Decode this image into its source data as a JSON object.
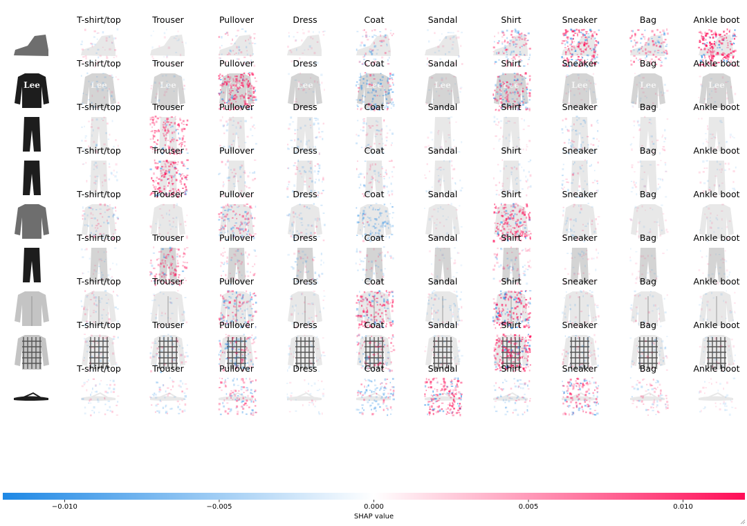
{
  "chart_data": {
    "type": "heatmap",
    "class_labels": [
      "T-shirt/top",
      "Trouser",
      "Pullover",
      "Dress",
      "Coat",
      "Sandal",
      "Shirt",
      "Sneaker",
      "Bag",
      "Ankle boot"
    ],
    "input_items": [
      "ankle-boot",
      "sweater",
      "trouser",
      "jeans",
      "cardigan",
      "trouser",
      "hoodie",
      "plaid-shirt",
      "flip-flop"
    ],
    "input_shades": [
      "gray",
      "dark",
      "dark",
      "dark",
      "gray",
      "dark",
      "light",
      "light",
      "dark"
    ],
    "overlay_shades": [
      "light",
      "gray",
      "light",
      "light",
      "light",
      "gray",
      "light",
      "light",
      "light"
    ],
    "shap_intensity": [
      [
        0.15,
        0.05,
        0.25,
        0.1,
        0.35,
        0.1,
        0.55,
        0.9,
        0.6,
        1.0
      ],
      [
        0.15,
        0.05,
        0.9,
        0.05,
        0.6,
        0.05,
        0.75,
        0.05,
        0.05,
        0.05
      ],
      [
        0.1,
        0.7,
        0.15,
        0.2,
        0.2,
        0.05,
        0.1,
        0.25,
        0.1,
        0.05
      ],
      [
        0.1,
        0.8,
        0.2,
        0.25,
        0.25,
        0.1,
        0.15,
        0.2,
        0.1,
        0.1
      ],
      [
        0.3,
        0.1,
        0.55,
        0.2,
        0.45,
        0.05,
        0.9,
        0.15,
        0.05,
        0.05
      ],
      [
        0.1,
        0.6,
        0.25,
        0.2,
        0.2,
        0.05,
        0.3,
        0.1,
        0.05,
        0.05
      ],
      [
        0.2,
        0.1,
        0.6,
        0.1,
        0.8,
        0.2,
        0.9,
        0.15,
        0.1,
        0.05
      ],
      [
        0.15,
        0.2,
        0.55,
        0.1,
        0.45,
        0.1,
        0.9,
        0.2,
        0.15,
        0.1
      ],
      [
        0.2,
        0.25,
        0.55,
        0.1,
        0.5,
        0.85,
        0.3,
        0.7,
        0.3,
        0.1
      ]
    ],
    "shap_sign_bias": [
      [
        0,
        0,
        0,
        0,
        -0.4,
        0,
        0.3,
        0.4,
        0.4,
        0.8
      ],
      [
        -0.5,
        0,
        0.8,
        0,
        -0.5,
        0,
        0.3,
        0,
        0,
        0
      ],
      [
        0,
        0.8,
        0,
        -0.5,
        0,
        0,
        0,
        -0.5,
        0,
        0
      ],
      [
        0,
        0.8,
        0,
        -0.3,
        0,
        0,
        0,
        -0.5,
        0,
        0
      ],
      [
        0,
        0,
        0.2,
        -0.3,
        -0.8,
        0,
        0.7,
        0,
        0,
        0
      ],
      [
        0,
        0.8,
        0.2,
        -0.5,
        0,
        0,
        0.3,
        0,
        0,
        0
      ],
      [
        0,
        0,
        0,
        0,
        0.5,
        -0.5,
        0.4,
        0,
        0,
        0
      ],
      [
        0,
        -0.4,
        0,
        0,
        0.2,
        0,
        0.7,
        -0.3,
        0,
        0
      ],
      [
        0,
        0,
        0.2,
        0,
        -0.5,
        0.6,
        -0.3,
        0.2,
        0.4,
        0
      ]
    ],
    "colorbar": {
      "label": "SHAP value",
      "min": -0.012,
      "max": 0.012,
      "ticks": [
        -0.01,
        -0.005,
        0.0,
        0.005,
        0.01
      ],
      "tick_labels": [
        "−0.010",
        "−0.005",
        "0.000",
        "0.005",
        "0.010"
      ],
      "colors": [
        "#1e88e5",
        "#ffffff",
        "#ff0d57"
      ]
    },
    "colors": {
      "negative": "#1e88e5",
      "positive": "#ff0d57",
      "image_gray": "#d0d0d0",
      "image_dark": "#1a1a1a"
    }
  }
}
